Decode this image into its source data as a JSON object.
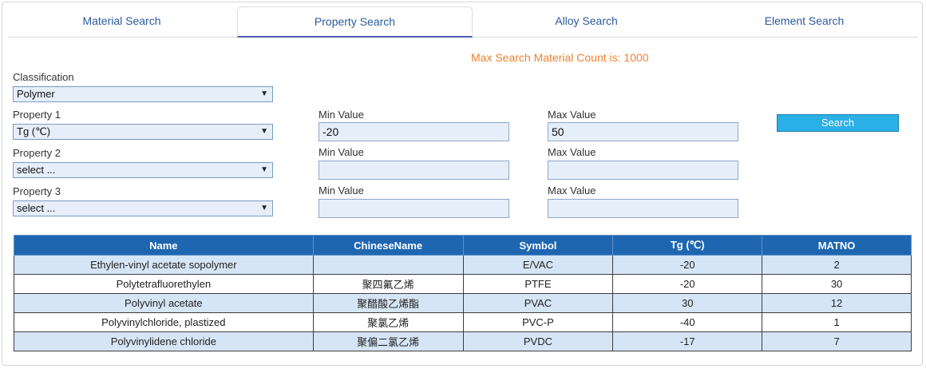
{
  "tabs": [
    {
      "label": "Material Search"
    },
    {
      "label": "Property Search"
    },
    {
      "label": "Alloy Search"
    },
    {
      "label": "Element Search"
    }
  ],
  "active_tab": "Property Search",
  "note": "Max Search Material Count is: 1000",
  "classification": {
    "label": "Classification",
    "value": "Polymer"
  },
  "properties": [
    {
      "label": "Property 1",
      "value": "Tg (℃)",
      "min_label": "Min Value",
      "min_value": "-20",
      "max_label": "Max Value",
      "max_value": "50"
    },
    {
      "label": "Property 2",
      "value": "select ...",
      "min_label": "Min Value",
      "min_value": "",
      "max_label": "Max Value",
      "max_value": ""
    },
    {
      "label": "Property 3",
      "value": "select ...",
      "min_label": "Min Value",
      "min_value": "",
      "max_label": "Max Value",
      "max_value": ""
    }
  ],
  "search_button": "Search",
  "table": {
    "headers": [
      "Name",
      "ChineseName",
      "Symbol",
      "Tg (℃)",
      "MATNO"
    ],
    "rows": [
      [
        "Ethylen-vinyl acetate sopolymer",
        "",
        "E/VAC",
        "-20",
        "2"
      ],
      [
        "Polytetrafluorethylen",
        "聚四氟乙烯",
        "PTFE",
        "-20",
        "30"
      ],
      [
        "Polyvinyl acetate",
        "聚醋酸乙烯酯",
        "PVAC",
        "30",
        "12"
      ],
      [
        "Polyvinylchloride, plastized",
        "聚氯乙烯",
        "PVC-P",
        "-40",
        "1"
      ],
      [
        "Polyvinylidene chloride",
        "聚偏二氯乙烯",
        "PVDC",
        "-17",
        "7"
      ]
    ]
  },
  "colors": {
    "accent": "#f0822f",
    "header": "#1f66b1",
    "button": "#2ab0e6",
    "row_alt": "#d6e5f5"
  }
}
